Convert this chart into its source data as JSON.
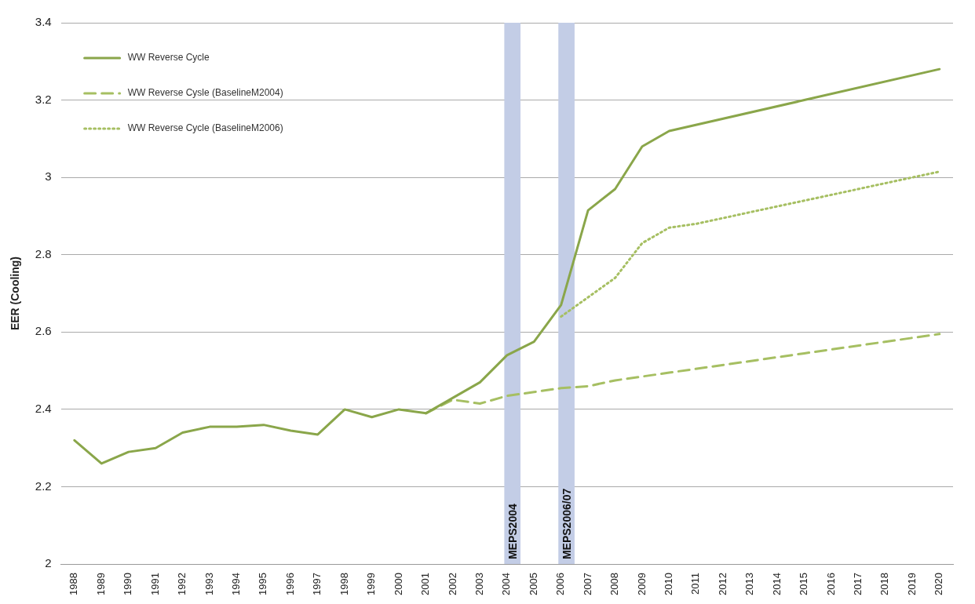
{
  "chart_data": {
    "type": "line",
    "ylabel": "EER (Cooling)",
    "xlim": [
      1987.5,
      2020.5
    ],
    "xticks": [
      1988,
      1989,
      1990,
      1991,
      1992,
      1993,
      1994,
      1995,
      1996,
      1997,
      1998,
      1999,
      2000,
      2001,
      2002,
      2003,
      2004,
      2005,
      2006,
      2007,
      2008,
      2009,
      2010,
      2011,
      2012,
      2013,
      2014,
      2015,
      2016,
      2017,
      2018,
      2019,
      2020
    ],
    "ylim": [
      2,
      3.4
    ],
    "yticks": [
      2,
      2.2,
      2.4,
      2.6,
      2.8,
      3,
      3.2,
      3.4
    ],
    "grid": "y",
    "legend": "top left",
    "marker": "none",
    "bands": [
      {
        "axis": "x",
        "from": 2003.9,
        "to": 2004.5,
        "label": "MEPS2004",
        "color": "#c3cde6"
      },
      {
        "axis": "x",
        "from": 2005.9,
        "to": 2006.5,
        "label": "MEPS2006/07",
        "color": "#c3cde6"
      }
    ],
    "series": [
      {
        "name": "WW Reverse Cycle",
        "color": "#8aa64a",
        "line_style": "solid",
        "x": [
          1988,
          1989,
          1990,
          1991,
          1992,
          1993,
          1994,
          1995,
          1996,
          1997,
          1998,
          1999,
          2000,
          2001,
          2002,
          2003,
          2004,
          2005,
          2006,
          2007,
          2008,
          2009,
          2010,
          2015,
          2020
        ],
        "values": [
          2.32,
          2.26,
          2.29,
          2.3,
          2.34,
          2.355,
          2.355,
          2.36,
          2.345,
          2.335,
          2.4,
          2.38,
          2.4,
          2.39,
          2.43,
          2.47,
          2.54,
          2.575,
          2.67,
          2.915,
          2.97,
          3.08,
          3.12,
          3.2,
          3.28
        ]
      },
      {
        "name": "WW Reverse Cysle (BaselineM2004)",
        "color": "#a6bf62",
        "line_style": "dashed",
        "x": [
          2001,
          2002,
          2003,
          2004,
          2005,
          2006,
          2007,
          2008,
          2009,
          2010,
          2015,
          2020
        ],
        "values": [
          2.39,
          2.425,
          2.415,
          2.435,
          2.445,
          2.455,
          2.46,
          2.475,
          2.485,
          2.495,
          2.545,
          2.595
        ]
      },
      {
        "name": "WW Reverse Cycle (BaselineM2006)",
        "color": "#a6bf62",
        "line_style": "dotted",
        "x": [
          2006,
          2007,
          2008,
          2009,
          2010,
          2011,
          2015,
          2020
        ],
        "values": [
          2.64,
          2.69,
          2.74,
          2.83,
          2.87,
          2.88,
          2.94,
          3.015
        ]
      }
    ]
  }
}
